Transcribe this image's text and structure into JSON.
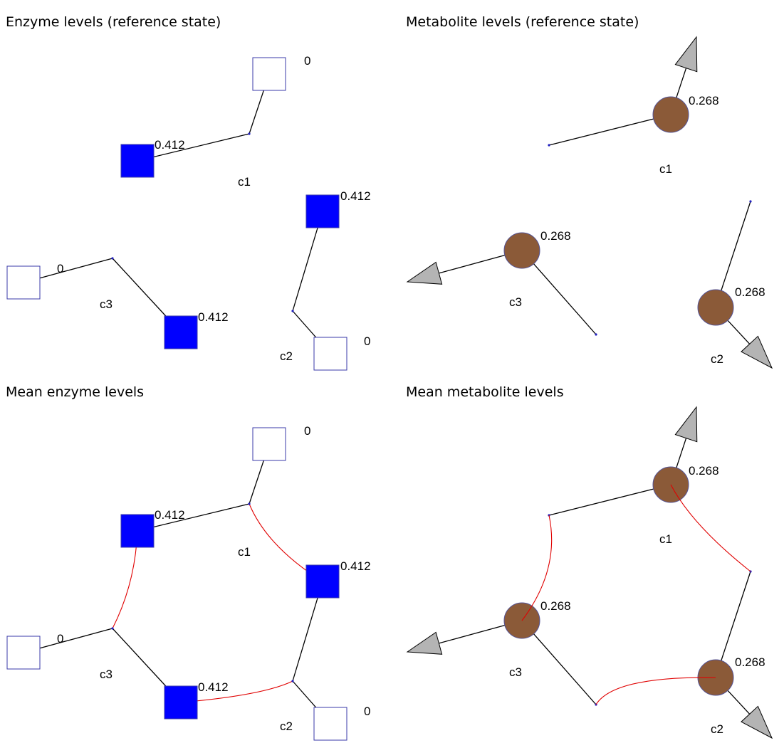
{
  "colors": {
    "enzyme_active": "#0000ff",
    "enzyme_inactive": "#ffffff",
    "enzyme_outline": "#3a3aa8",
    "metabolite_fill": "#8b5a38",
    "metabolite_outline": "#555599",
    "arrow_fill": "#b4b4b4",
    "edge": "#000000",
    "link": "#e00000",
    "node_dot": "#2020c0"
  },
  "panels": [
    {
      "id": "enzyme-reference",
      "kind": "enzyme",
      "title": "Enzyme levels (reference state)",
      "show_links": false,
      "clusters": [
        {
          "name": "c1",
          "upper": {
            "value": "0",
            "level": 0
          },
          "lower": {
            "value": "0.412",
            "level": 0.412
          }
        },
        {
          "name": "c2",
          "upper": {
            "value": "0.412",
            "level": 0.412
          },
          "lower": {
            "value": "0",
            "level": 0
          }
        },
        {
          "name": "c3",
          "upper": {
            "value": "0.412",
            "level": 0.412
          },
          "lower": {
            "value": "0",
            "level": 0
          }
        }
      ]
    },
    {
      "id": "metabolite-reference",
      "kind": "metabolite",
      "title": "Metabolite levels (reference state)",
      "show_links": false,
      "clusters": [
        {
          "name": "c1",
          "value": "0.268",
          "level": 0.268
        },
        {
          "name": "c2",
          "value": "0.268",
          "level": 0.268
        },
        {
          "name": "c3",
          "value": "0.268",
          "level": 0.268
        }
      ]
    },
    {
      "id": "enzyme-mean",
      "kind": "enzyme",
      "title": "Mean enzyme levels",
      "show_links": true,
      "clusters": [
        {
          "name": "c1",
          "upper": {
            "value": "0",
            "level": 0
          },
          "lower": {
            "value": "0.412",
            "level": 0.412
          }
        },
        {
          "name": "c2",
          "upper": {
            "value": "0.412",
            "level": 0.412
          },
          "lower": {
            "value": "0",
            "level": 0
          }
        },
        {
          "name": "c3",
          "upper": {
            "value": "0.412",
            "level": 0.412
          },
          "lower": {
            "value": "0",
            "level": 0
          }
        }
      ]
    },
    {
      "id": "metabolite-mean",
      "kind": "metabolite",
      "title": "Mean metabolite levels",
      "show_links": true,
      "clusters": [
        {
          "name": "c1",
          "value": "0.268",
          "level": 0.268
        },
        {
          "name": "c2",
          "value": "0.268",
          "level": 0.268
        },
        {
          "name": "c3",
          "value": "0.268",
          "level": 0.268
        }
      ]
    }
  ]
}
